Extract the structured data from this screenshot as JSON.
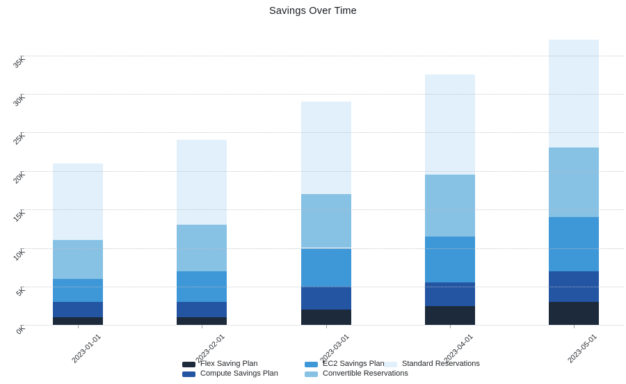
{
  "chart_data": {
    "type": "bar",
    "stacked": true,
    "title": "Savings Over Time",
    "xlabel": "",
    "ylabel": "",
    "categories": [
      "2023-01-01",
      "2023-02-01",
      "2023-03-01",
      "2023-04-01",
      "2023-05-01"
    ],
    "series": [
      {
        "name": "Flex Saving Plan",
        "color": "#1D2A3B",
        "values": [
          1000,
          1000,
          2000,
          2500,
          3000
        ]
      },
      {
        "name": "Compute Savings Plan",
        "color": "#2355A3",
        "values": [
          2000,
          2000,
          3000,
          3000,
          4000
        ]
      },
      {
        "name": "EC2 Savings Plan",
        "color": "#3E97D7",
        "values": [
          3000,
          4000,
          5000,
          6000,
          7000
        ]
      },
      {
        "name": "Convertible Reservations",
        "color": "#87C1E4",
        "values": [
          5000,
          6000,
          7000,
          8000,
          9000
        ]
      },
      {
        "name": "Standard Reservations",
        "color": "#E1F0FA",
        "values": [
          10000,
          11000,
          12000,
          13000,
          14000
        ]
      }
    ],
    "stack_totals": [
      21000,
      24000,
      29000,
      32500,
      37000
    ],
    "y_tick_labels": [
      "0K",
      "5K",
      "10K",
      "15K",
      "20K",
      "25K",
      "30K",
      "35K"
    ],
    "y_tick_values": [
      0,
      5000,
      10000,
      15000,
      20000,
      25000,
      30000,
      35000
    ],
    "ylim": [
      0,
      38000
    ],
    "grid": "horizontal-dotted",
    "legend_position": "bottom",
    "tick_label_rotation_deg": 45
  }
}
